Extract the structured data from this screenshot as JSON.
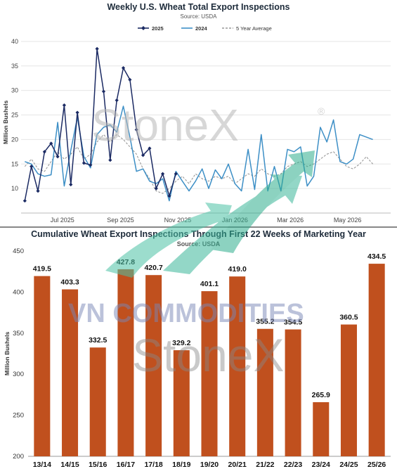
{
  "chart_data": [
    {
      "type": "line",
      "title": "Weekly U.S. Wheat Total Export Inspections",
      "subtitle": "Source: USDA",
      "ylabel": "Million Bushels",
      "ylim": [
        5,
        42
      ],
      "yticks": [
        10,
        15,
        20,
        25,
        30,
        35,
        40
      ],
      "xlim": [
        "2025-06-01",
        "2026-06-30"
      ],
      "xticks": [
        {
          "label": "Jul 2025",
          "date": "2025-07-15"
        },
        {
          "label": "Sep 2025",
          "date": "2025-09-15"
        },
        {
          "label": "Nov 2025",
          "date": "2025-11-15"
        },
        {
          "label": "Jan 2026",
          "date": "2026-01-15"
        },
        {
          "label": "Mar 2026",
          "date": "2026-03-15"
        },
        {
          "label": "May 2026",
          "date": "2026-05-15"
        }
      ],
      "legend_position": "top",
      "series": [
        {
          "name": "2025",
          "color": "#1b2a63",
          "style": "solid-markers",
          "x": [
            "2025-06-05",
            "2025-06-12",
            "2025-06-19",
            "2025-06-26",
            "2025-07-03",
            "2025-07-10",
            "2025-07-17",
            "2025-07-24",
            "2025-07-31",
            "2025-08-07",
            "2025-08-14",
            "2025-08-21",
            "2025-08-28",
            "2025-09-04",
            "2025-09-11",
            "2025-09-18",
            "2025-09-25",
            "2025-10-02",
            "2025-10-09",
            "2025-10-16",
            "2025-10-23",
            "2025-10-30",
            "2025-11-06",
            "2025-11-13"
          ],
          "values": [
            7.5,
            14.5,
            9.5,
            17.5,
            19.2,
            16.5,
            27.0,
            10.8,
            25.5,
            15.2,
            14.8,
            38.5,
            29.8,
            15.8,
            28.0,
            34.6,
            32.2,
            22.0,
            16.8,
            18.2,
            10.0,
            13.0,
            8.5,
            13.0
          ]
        },
        {
          "name": "2024",
          "color": "#3d8fc6",
          "style": "solid",
          "x": [
            "2025-06-05",
            "2025-06-12",
            "2025-06-19",
            "2025-06-26",
            "2025-07-03",
            "2025-07-10",
            "2025-07-17",
            "2025-07-24",
            "2025-07-31",
            "2025-08-07",
            "2025-08-14",
            "2025-08-21",
            "2025-08-28",
            "2025-09-04",
            "2025-09-11",
            "2025-09-18",
            "2025-09-25",
            "2025-10-02",
            "2025-10-09",
            "2025-10-16",
            "2025-10-23",
            "2025-10-30",
            "2025-11-06",
            "2025-11-13",
            "2025-11-20",
            "2025-11-27",
            "2025-12-04",
            "2025-12-11",
            "2025-12-18",
            "2025-12-25",
            "2026-01-01",
            "2026-01-08",
            "2026-01-15",
            "2026-01-22",
            "2026-01-29",
            "2026-02-05",
            "2026-02-12",
            "2026-02-19",
            "2026-02-26",
            "2026-03-05",
            "2026-03-12",
            "2026-03-19",
            "2026-03-26",
            "2026-04-02",
            "2026-04-09",
            "2026-04-16",
            "2026-04-23",
            "2026-04-30",
            "2026-05-07",
            "2026-05-14",
            "2026-05-21",
            "2026-05-28",
            "2026-06-04",
            "2026-06-11"
          ],
          "values": [
            15.5,
            15.0,
            13.0,
            12.5,
            12.8,
            23.5,
            10.5,
            17.8,
            24.5,
            16.5,
            14.2,
            21.0,
            22.5,
            23.0,
            21.5,
            26.8,
            20.5,
            13.5,
            14.0,
            11.5,
            11.0,
            12.0,
            7.5,
            13.5,
            11.5,
            9.5,
            11.5,
            14.0,
            10.0,
            13.8,
            12.0,
            15.0,
            11.0,
            9.5,
            18.0,
            9.8,
            21.0,
            9.5,
            14.5,
            9.5,
            18.0,
            17.5,
            18.5,
            10.5,
            12.5,
            22.5,
            19.5,
            24.0,
            15.5,
            15.0,
            16.0,
            21.0,
            20.5,
            20.0
          ]
        },
        {
          "name": "5 Year Average",
          "color": "#999999",
          "style": "dashed",
          "x": [
            "2025-06-05",
            "2025-06-12",
            "2025-06-19",
            "2025-06-26",
            "2025-07-03",
            "2025-07-10",
            "2025-07-17",
            "2025-07-24",
            "2025-07-31",
            "2025-08-07",
            "2025-08-14",
            "2025-08-21",
            "2025-08-28",
            "2025-09-04",
            "2025-09-11",
            "2025-09-18",
            "2025-09-25",
            "2025-10-02",
            "2025-10-09",
            "2025-10-16",
            "2025-10-23",
            "2025-10-30",
            "2025-11-06",
            "2025-11-13",
            "2025-11-20",
            "2025-11-27",
            "2025-12-04",
            "2025-12-11",
            "2025-12-18",
            "2025-12-25",
            "2026-01-01",
            "2026-01-08",
            "2026-01-15",
            "2026-01-22",
            "2026-01-29",
            "2026-02-05",
            "2026-02-12",
            "2026-02-19",
            "2026-02-26",
            "2026-03-05",
            "2026-03-12",
            "2026-03-19",
            "2026-03-26",
            "2026-04-02",
            "2026-04-09",
            "2026-04-16",
            "2026-04-23",
            "2026-04-30",
            "2026-05-07",
            "2026-05-14",
            "2026-05-21",
            "2026-05-28",
            "2026-06-04",
            "2026-06-11"
          ],
          "values": [
            14.5,
            16.0,
            14.0,
            13.5,
            15.5,
            17.5,
            16.0,
            17.0,
            18.5,
            16.0,
            17.0,
            19.5,
            21.0,
            19.5,
            21.0,
            20.0,
            18.5,
            17.0,
            14.0,
            12.0,
            9.5,
            9.0,
            10.0,
            11.5,
            12.5,
            11.0,
            13.0,
            12.0,
            11.5,
            12.5,
            12.0,
            12.5,
            11.0,
            12.0,
            13.0,
            12.5,
            14.0,
            13.0,
            12.5,
            13.0,
            14.5,
            15.0,
            15.5,
            14.5,
            15.0,
            16.0,
            17.0,
            17.5,
            16.0,
            14.5,
            14.0,
            15.0,
            16.5,
            15.0
          ]
        }
      ]
    },
    {
      "type": "bar",
      "title": "Cumulative Wheat Export Inspections Through First 22 Weeks of Marketing Year",
      "subtitle": "Source: USDA",
      "ylabel": "Million Bushels",
      "ylim": [
        200,
        450
      ],
      "yticks": [
        200,
        250,
        300,
        350,
        400,
        450
      ],
      "bar_color": "#c0501e",
      "categories": [
        "13/14",
        "14/15",
        "15/16",
        "16/17",
        "17/18",
        "18/19",
        "19/20",
        "20/21",
        "21/22",
        "22/23",
        "23/24",
        "24/25",
        "25/26"
      ],
      "values": [
        419.5,
        403.3,
        332.5,
        427.8,
        420.7,
        329.2,
        401.1,
        419.0,
        355.2,
        354.5,
        265.9,
        360.5,
        434.5
      ],
      "labels": [
        "419.5",
        "403.3",
        "332.5",
        "427.8",
        "420.7",
        "329.2",
        "401.1",
        "419.0",
        "355.2",
        "354.5",
        "265.9",
        "360.5",
        "434.5"
      ]
    }
  ],
  "watermarks": {
    "brand_main": "StoneX",
    "brand_registered": "®",
    "brand_bottom": "StoneX",
    "commodities_text": "VN COMMODITIES"
  }
}
